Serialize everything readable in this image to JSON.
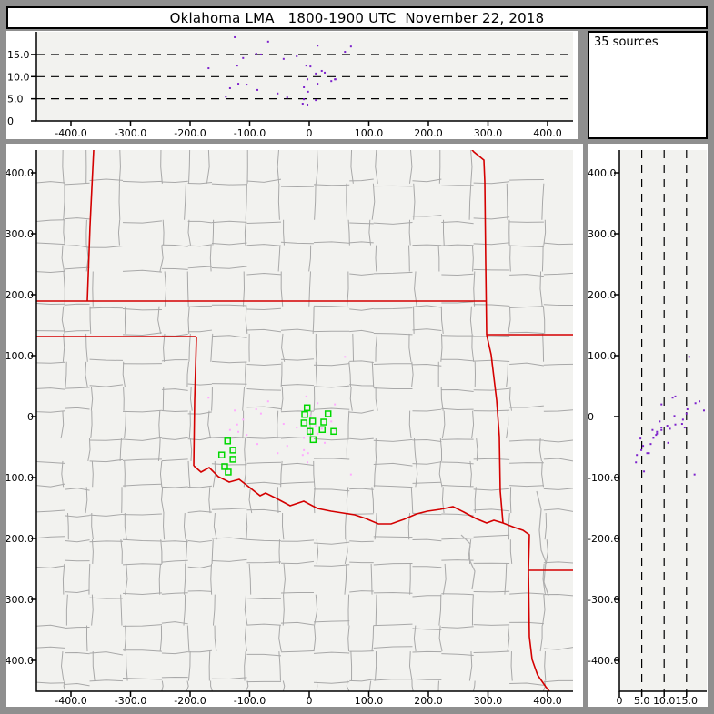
{
  "title": "Oklahoma LMA   1800-1900 UTC  November 22, 2018",
  "sources_label": "35 sources",
  "colors": {
    "frame": "#8f8f8f",
    "panel_bg": "#ffffff",
    "plot_bg": "#f2f2ef",
    "county_line": "#a8a8a8",
    "state_line": "#d40000",
    "river_line": "#b0b0b0",
    "station_marker": "#00d800",
    "source_dot_plan": "#ffaaff",
    "source_dot_panel": "#7d22cc",
    "dash_line": "#000000",
    "axis": "#000000"
  },
  "axes": {
    "ew_tick_labels": [
      "-400.0",
      "-300.0",
      "-200.0",
      "-100.0",
      "0",
      "100.0",
      "200.0",
      "300.0",
      "400.0"
    ],
    "ew_tick_values": [
      -400,
      -300,
      -200,
      -100,
      0,
      100,
      200,
      300,
      400
    ],
    "ns_tick_labels": [
      "400.0",
      "300.0",
      "200.0",
      "100.0",
      "0",
      "-100.0",
      "-200.0",
      "-300.0",
      "-400.0"
    ],
    "ns_tick_values": [
      400,
      300,
      200,
      100,
      0,
      -100,
      -200,
      -300,
      -400
    ],
    "alt_tick_labels_top": [
      "15.0",
      "10.0",
      "5.0",
      "0"
    ],
    "alt_tick_values_top": [
      15,
      10,
      5,
      0
    ],
    "alt_tick_labels_side": [
      "0",
      "5.0",
      "10.0",
      "15.0"
    ],
    "alt_tick_values_side": [
      0,
      5,
      10,
      15
    ],
    "alt_grid_values": [
      5,
      10,
      15
    ]
  },
  "chart_data": {
    "type": "scatter",
    "title": "Oklahoma LMA   1800-1900 UTC  November 22, 2018",
    "annotation": "35 sources",
    "source_count": 35,
    "panels": [
      {
        "id": "altitude-vs-eastwest",
        "x_range_km": [
          -458,
          443
        ],
        "y_range_km": [
          0,
          20
        ],
        "grid": "dashed horizontal at 5,10,15 km",
        "position": "top"
      },
      {
        "id": "plan-view-map",
        "x_range_km": [
          -458,
          443
        ],
        "y_range_km": [
          -450,
          437
        ],
        "grid": "county and state boundaries",
        "position": "main"
      },
      {
        "id": "altitude-vs-northsouth",
        "x_range_km": [
          0,
          19.5
        ],
        "y_range_km": [
          -450,
          437
        ],
        "grid": "dashed vertical at 5,10,15 km",
        "position": "right"
      }
    ],
    "sources_km": [
      [
        -125,
        10,
        18.9
      ],
      [
        -69,
        25,
        17.9
      ],
      [
        14,
        22,
        17.0
      ],
      [
        -81,
        5,
        15.0
      ],
      [
        -89,
        12,
        15.2
      ],
      [
        -111,
        -5,
        14.2
      ],
      [
        -43,
        -12,
        14.0
      ],
      [
        -21,
        -18,
        14.6
      ],
      [
        -5,
        33,
        12.5
      ],
      [
        2,
        1,
        12.3
      ],
      [
        -169,
        31,
        11.9
      ],
      [
        -121,
        -13,
        12.5
      ],
      [
        21,
        -20,
        11.3
      ],
      [
        11,
        -15,
        10.7
      ],
      [
        -119,
        -25,
        8.4
      ],
      [
        -105,
        -30,
        8.2
      ],
      [
        -133,
        -22,
        7.4
      ],
      [
        -87,
        -45,
        7.0
      ],
      [
        37,
        -8,
        9.0
      ],
      [
        43,
        20,
        9.4
      ],
      [
        -3,
        -18,
        9.4
      ],
      [
        -9,
        -35,
        7.6
      ],
      [
        -2,
        -60,
        6.6
      ],
      [
        14,
        -28,
        8.4
      ],
      [
        -37,
        -48,
        5.3
      ],
      [
        -9,
        -55,
        4.9
      ],
      [
        -3,
        -75,
        3.7
      ],
      [
        11,
        -36,
        4.7
      ],
      [
        -11,
        -63,
        3.9
      ],
      [
        26,
        -43,
        10.9
      ],
      [
        44,
        -22,
        9.4
      ],
      [
        -53,
        -60,
        6.2
      ],
      [
        -140,
        -90,
        5.5
      ],
      [
        60,
        98,
        15.6
      ],
      [
        70,
        -95,
        16.8
      ]
    ],
    "stations_km": [
      [
        -3.5,
        14.5
      ],
      [
        -7.6,
        3.4
      ],
      [
        31.6,
        4.5
      ],
      [
        -8.7,
        -10.4
      ],
      [
        5.6,
        -7.5
      ],
      [
        1.1,
        -24.3
      ],
      [
        21.8,
        -21.3
      ],
      [
        41.2,
        -24.3
      ],
      [
        6.6,
        -37.8
      ],
      [
        24.4,
        -9
      ],
      [
        -137,
        -40
      ],
      [
        -128,
        -55
      ],
      [
        -147,
        -63
      ],
      [
        -128,
        -70
      ],
      [
        -142,
        -82
      ],
      [
        -136,
        -91
      ]
    ]
  },
  "map": {
    "state_lines": [
      [
        [
          33,
          173
        ],
        [
          528,
          173
        ]
      ],
      [
        [
          96,
          7
        ],
        [
          92,
          90
        ],
        [
          89,
          173
        ]
      ],
      [
        [
          33,
          212
        ],
        [
          209,
          212
        ]
      ],
      [
        [
          209,
          212
        ],
        [
          207,
          282
        ],
        [
          206,
          354
        ]
      ],
      [
        [
          206,
          354
        ],
        [
          214,
          361
        ],
        [
          223,
          356
        ],
        [
          233,
          366
        ],
        [
          245,
          372
        ],
        [
          256,
          369
        ],
        [
          265,
          376
        ],
        [
          279,
          387
        ],
        [
          285,
          384
        ],
        [
          297,
          390
        ],
        [
          312,
          398
        ],
        [
          327,
          393
        ],
        [
          342,
          401
        ],
        [
          357,
          404
        ],
        [
          370,
          406
        ],
        [
          383,
          408
        ],
        [
          395,
          412
        ],
        [
          409,
          418
        ],
        [
          423,
          418
        ],
        [
          437,
          413
        ],
        [
          451,
          407
        ],
        [
          463,
          404
        ],
        [
          477,
          402
        ],
        [
          491,
          399
        ],
        [
          503,
          405
        ],
        [
          516,
          412
        ],
        [
          528,
          417
        ],
        [
          536,
          414
        ],
        [
          546,
          417
        ]
      ],
      [
        [
          528,
          210
        ],
        [
          533,
          232
        ],
        [
          539,
          282
        ],
        [
          542,
          322
        ],
        [
          543,
          382
        ],
        [
          546,
          417
        ]
      ],
      [
        [
          528,
          210
        ],
        [
          623,
          210
        ]
      ],
      [
        [
          528,
          210
        ],
        [
          527,
          132
        ],
        [
          526,
          42
        ],
        [
          525,
          18
        ],
        [
          514,
          9
        ],
        [
          506,
          0
        ]
      ],
      [
        [
          546,
          417
        ],
        [
          559,
          422
        ],
        [
          568,
          425
        ],
        [
          575,
          430
        ],
        [
          574,
          469
        ],
        [
          575,
          542
        ],
        [
          578,
          567
        ],
        [
          584,
          584
        ],
        [
          593,
          597
        ],
        [
          601,
          607
        ]
      ],
      [
        [
          574,
          469
        ],
        [
          623,
          469
        ]
      ]
    ],
    "rivers": [
      [
        [
          583,
          382
        ],
        [
          588,
          402
        ],
        [
          586,
          425
        ],
        [
          588,
          447
        ],
        [
          593,
          460
        ],
        [
          591,
          482
        ],
        [
          596,
          497
        ]
      ],
      [
        [
          500,
          430
        ],
        [
          510,
          440
        ],
        [
          508,
          455
        ],
        [
          515,
          470
        ],
        [
          512,
          490
        ]
      ]
    ],
    "county_grid": {
      "seed": 12,
      "col_min": 26,
      "col_var": 18,
      "row_min": 24,
      "row_var": 16,
      "draw_prob": 0.8
    }
  }
}
